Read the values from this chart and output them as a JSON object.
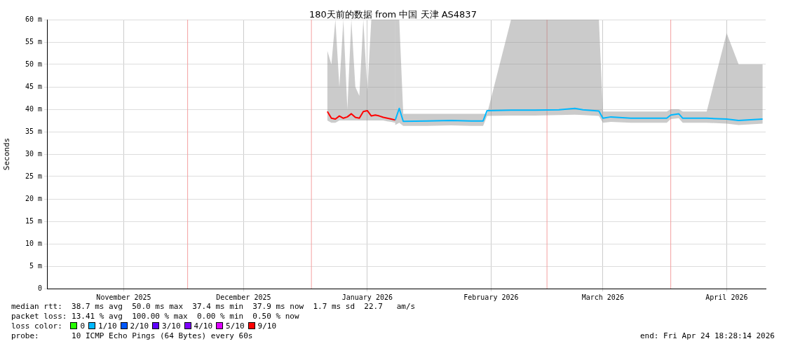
{
  "chart_data": {
    "type": "line",
    "title": "180天前的数据 from 中国 天津 AS4837",
    "ylabel": "Seconds",
    "legend_title": "loss color:",
    "legend": "bottom",
    "grid": true,
    "marker": "none",
    "line_style": "solid",
    "xlim": [
      "2025-10-26T18:28",
      "2026-04-24T18:28"
    ],
    "xticks": [
      {
        "value": "2025-11-15",
        "label": "November 2025"
      },
      {
        "value": "2025-12-15",
        "label": "December 2025"
      },
      {
        "value": "2026-01-15",
        "label": "January 2026"
      },
      {
        "value": "2026-02-15",
        "label": "February 2026"
      },
      {
        "value": "2026-03-15",
        "label": "March 2026"
      },
      {
        "value": "2026-04-15",
        "label": "April 2026"
      }
    ],
    "ylim": [
      0,
      60
    ],
    "yticks": [
      0,
      {
        "value": 5,
        "label": "5 m"
      },
      {
        "value": 10,
        "label": "10 m"
      },
      {
        "value": 15,
        "label": "15 m"
      },
      {
        "value": 20,
        "label": "20 m"
      },
      {
        "value": 25,
        "label": "25 m"
      },
      {
        "value": 30,
        "label": "30 m"
      },
      {
        "value": 35,
        "label": "35 m"
      },
      {
        "value": 40,
        "label": "40 m"
      },
      {
        "value": 45,
        "label": "45 m"
      },
      {
        "value": 50,
        "label": "50 m"
      },
      {
        "value": 55,
        "label": "55 m"
      },
      {
        "value": 60,
        "label": "60 m"
      }
    ],
    "ref_lines": [
      {
        "axis": "x",
        "value": "2025-12-01",
        "color": "#f4a0a0"
      },
      {
        "axis": "x",
        "value": "2026-01-01",
        "color": "#f4a0a0"
      },
      {
        "axis": "x",
        "value": "2026-03-01",
        "color": "#f4a0a0"
      },
      {
        "axis": "x",
        "value": "2026-04-01",
        "color": "#f4a0a0"
      }
    ],
    "series": [
      {
        "name": "0",
        "color": "#26ff00"
      },
      {
        "name": "1/10",
        "color": "#00b8ff",
        "x": [
          "2026-01-22",
          "2026-01-23",
          "2026-01-24",
          "2026-01-30",
          "2026-02-05",
          "2026-02-10",
          "2026-02-13",
          "2026-02-14",
          "2026-02-20",
          "2026-02-26",
          "2026-03-04",
          "2026-03-08",
          "2026-03-10",
          "2026-03-14",
          "2026-03-15",
          "2026-03-17",
          "2026-03-22",
          "2026-03-27",
          "2026-03-31",
          "2026-04-01",
          "2026-04-03",
          "2026-04-04",
          "2026-04-10",
          "2026-04-15",
          "2026-04-18",
          "2026-04-24"
        ],
        "values": [
          37.6,
          40.2,
          37.3,
          37.4,
          37.5,
          37.4,
          37.4,
          39.7,
          39.8,
          39.8,
          39.9,
          40.2,
          39.9,
          39.6,
          38,
          38.3,
          38,
          38,
          38,
          38.7,
          39,
          38,
          38,
          37.8,
          37.5,
          37.8
        ],
        "lower": [
          36.5,
          37,
          36.3,
          36.3,
          36.4,
          36.3,
          36.3,
          38.5,
          38.6,
          38.6,
          38.7,
          38.8,
          38.7,
          38.5,
          37,
          37.2,
          37,
          37,
          37,
          37.8,
          38,
          37,
          37,
          36.8,
          36.5,
          36.8
        ],
        "upper": [
          60,
          60,
          39,
          39,
          39,
          39,
          39,
          39,
          60,
          60,
          60,
          60,
          60,
          60,
          39.5,
          39.5,
          39.5,
          39.5,
          39.5,
          40,
          40,
          39.5,
          39.5,
          57,
          50,
          50
        ]
      },
      {
        "name": "2/10",
        "color": "#0059ff"
      },
      {
        "name": "3/10",
        "color": "#5e00ff"
      },
      {
        "name": "4/10",
        "color": "#7e00ff"
      },
      {
        "name": "5/10",
        "color": "#dd00ff"
      },
      {
        "name": "9/10",
        "color": "#ff0000",
        "x": [
          "2026-01-05",
          "2026-01-06",
          "2026-01-07",
          "2026-01-08",
          "2026-01-09",
          "2026-01-10",
          "2026-01-11",
          "2026-01-12",
          "2026-01-13",
          "2026-01-14",
          "2026-01-15",
          "2026-01-16",
          "2026-01-17",
          "2026-01-18",
          "2026-01-19",
          "2026-01-20",
          "2026-01-21",
          "2026-01-22"
        ],
        "values": [
          39.5,
          38,
          37.8,
          38.5,
          38,
          38.3,
          39,
          38.2,
          38,
          39.5,
          39.7,
          38.5,
          38.7,
          38.5,
          38.2,
          38,
          37.8,
          37.6
        ],
        "lower": [
          37.5,
          37,
          37,
          37.5,
          37.5,
          37.5,
          37.5,
          37.5,
          37.5,
          37.5,
          37.5,
          37.5,
          37.5,
          37.5,
          37.5,
          37.3,
          37.2,
          37
        ],
        "upper": [
          53,
          50,
          60,
          45,
          60,
          40,
          60,
          45,
          43,
          60,
          44,
          60,
          60,
          60,
          60,
          60,
          60,
          60
        ]
      }
    ],
    "annotations": [
      "median rtt:  38.7 ms avg  50.0 ms max  37.4 ms min  37.9 ms now  1.7 ms sd  22.7   am/s",
      "packet loss: 13.41 % avg  100.00 % max  0.00 % min  0.50 % now",
      "probe:       10 ICMP Echo Pings (64 Bytes) every 60s",
      "end: Fri Apr 24 18:28:14 2026"
    ]
  }
}
